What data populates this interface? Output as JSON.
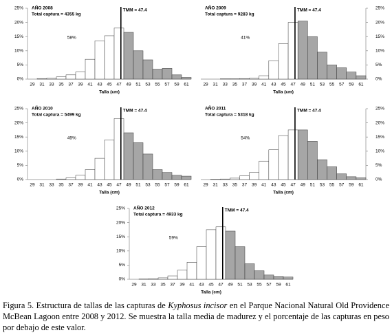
{
  "chart_data": [
    {
      "type": "bar",
      "title": "AÑO 2008",
      "subtitle": "Total captura = 4355 kg",
      "xlabel": "Talla (cm)",
      "annotation": "TMM = 47.4",
      "tmm": 47.4,
      "percent_label": "58%",
      "y_axis_side": "left",
      "grid": false,
      "colors": [
        "#ffffff",
        "#a6a6a6"
      ],
      "x": [
        29,
        31,
        33,
        35,
        37,
        39,
        41,
        43,
        45,
        47,
        49,
        51,
        53,
        55,
        57,
        59,
        61
      ],
      "values": [
        0,
        0.2,
        0.3,
        0.8,
        1.5,
        2.5,
        7,
        13.5,
        15.3,
        18,
        16.5,
        10,
        6.8,
        3.5,
        3.8,
        1.5,
        0.6
      ],
      "xlim": [
        28,
        62
      ],
      "xticks": [
        29,
        31,
        33,
        35,
        37,
        39,
        41,
        43,
        45,
        47,
        49,
        51,
        53,
        55,
        57,
        59,
        61
      ],
      "ylim": [
        0,
        25
      ],
      "yticks": [
        {
          "value": 0,
          "label": "0%"
        },
        {
          "value": 5,
          "label": "5%"
        },
        {
          "value": 10,
          "label": "10%"
        },
        {
          "value": 15,
          "label": "15%"
        },
        {
          "value": 20,
          "label": "20%"
        },
        {
          "value": 25,
          "label": "25%"
        }
      ]
    },
    {
      "type": "bar",
      "title": "AÑO 2009",
      "subtitle": "Total captura = 9283 kg",
      "xlabel": "Talla (cm)",
      "annotation": "TMM = 47.4",
      "tmm": 47.4,
      "percent_label": "41%",
      "y_axis_side": "right",
      "grid": false,
      "colors": [
        "#ffffff",
        "#a6a6a6"
      ],
      "x": [
        29,
        31,
        33,
        35,
        37,
        39,
        41,
        43,
        45,
        47,
        49,
        51,
        53,
        55,
        57,
        59,
        61
      ],
      "values": [
        0,
        0,
        0.1,
        0.1,
        0.2,
        0.3,
        1.2,
        6.5,
        12.5,
        20,
        20.5,
        15,
        9.5,
        5,
        4,
        2.5,
        1.2
      ],
      "xlim": [
        28,
        62
      ],
      "xticks": [
        29,
        31,
        33,
        35,
        37,
        39,
        41,
        43,
        45,
        47,
        49,
        51,
        53,
        55,
        57,
        59,
        61
      ],
      "ylim": [
        0,
        25
      ],
      "yticks": [
        {
          "value": 0,
          "label": "0%"
        },
        {
          "value": 5,
          "label": "5%"
        },
        {
          "value": 10,
          "label": "10%"
        },
        {
          "value": 15,
          "label": "15%"
        },
        {
          "value": 20,
          "label": "20%"
        },
        {
          "value": 25,
          "label": "25%"
        }
      ]
    },
    {
      "type": "bar",
      "title": "AÑO 2010",
      "subtitle": "Total captura = 5499 kg",
      "xlabel": "Talla (cm)",
      "annotation": "TMM = 47.4",
      "tmm": 47.4,
      "percent_label": "49%",
      "y_axis_side": "left",
      "grid": false,
      "colors": [
        "#ffffff",
        "#a6a6a6"
      ],
      "x": [
        29,
        31,
        33,
        35,
        37,
        39,
        41,
        43,
        45,
        47,
        49,
        51,
        53,
        55,
        57,
        59,
        61
      ],
      "values": [
        0,
        0,
        0,
        0.2,
        0.6,
        1.5,
        3.5,
        7.5,
        14,
        21.5,
        16.5,
        13,
        9,
        3.5,
        2.5,
        1.5,
        1.2
      ],
      "xlim": [
        28,
        62
      ],
      "xticks": [
        29,
        31,
        33,
        35,
        37,
        39,
        41,
        43,
        45,
        47,
        49,
        51,
        53,
        55,
        57,
        59,
        61
      ],
      "ylim": [
        0,
        25
      ],
      "yticks": [
        {
          "value": 0,
          "label": "0%"
        },
        {
          "value": 5,
          "label": "5%"
        },
        {
          "value": 10,
          "label": "10%"
        },
        {
          "value": 15,
          "label": "15%"
        },
        {
          "value": 20,
          "label": "20%"
        },
        {
          "value": 25,
          "label": "25%"
        }
      ]
    },
    {
      "type": "bar",
      "title": "AÑO 2011",
      "subtitle": "Total captura = 5318 kg",
      "xlabel": "Talla (cm)",
      "annotation": "TMM = 47.4",
      "tmm": 47.4,
      "percent_label": "54%",
      "y_axis_side": "right",
      "grid": false,
      "colors": [
        "#ffffff",
        "#a6a6a6"
      ],
      "x": [
        29,
        31,
        33,
        35,
        37,
        39,
        41,
        43,
        45,
        47,
        49,
        51,
        53,
        55,
        57,
        59,
        61
      ],
      "values": [
        0,
        0.1,
        0.2,
        0.5,
        1.3,
        2.5,
        6.5,
        10.5,
        15.5,
        17.5,
        17.5,
        13.5,
        7,
        4.5,
        2,
        1,
        0.6
      ],
      "xlim": [
        28,
        62
      ],
      "xticks": [
        29,
        31,
        33,
        35,
        37,
        39,
        41,
        43,
        45,
        47,
        49,
        51,
        53,
        55,
        57,
        59,
        61
      ],
      "ylim": [
        0,
        25
      ],
      "yticks": [
        {
          "value": 0,
          "label": "0%"
        },
        {
          "value": 5,
          "label": "5%"
        },
        {
          "value": 10,
          "label": "10%"
        },
        {
          "value": 15,
          "label": "15%"
        },
        {
          "value": 20,
          "label": "20%"
        },
        {
          "value": 25,
          "label": "25%"
        }
      ]
    },
    {
      "type": "bar",
      "title": "AÑO 2012",
      "subtitle": "Total captura = 4933 kg",
      "xlabel": "Talla (cm)",
      "annotation": "TMM = 47.4",
      "tmm": 47.4,
      "percent_label": "59%",
      "y_axis_side": "left",
      "grid": false,
      "colors": [
        "#ffffff",
        "#a6a6a6"
      ],
      "x": [
        29,
        31,
        33,
        35,
        37,
        39,
        41,
        43,
        45,
        47,
        49,
        51,
        53,
        55,
        57,
        59,
        61
      ],
      "values": [
        0,
        0.1,
        0.2,
        0.5,
        1.2,
        3.2,
        6,
        11.5,
        17.5,
        18.5,
        17,
        11.5,
        5.5,
        3,
        1.5,
        1,
        0.8
      ],
      "xlim": [
        28,
        62
      ],
      "xticks": [
        29,
        31,
        33,
        35,
        37,
        39,
        41,
        43,
        45,
        47,
        49,
        51,
        53,
        55,
        57,
        59,
        61
      ],
      "ylim": [
        0,
        25
      ],
      "yticks": [
        {
          "value": 0,
          "label": "0%"
        },
        {
          "value": 5,
          "label": "5%"
        },
        {
          "value": 10,
          "label": "10%"
        },
        {
          "value": 15,
          "label": "15%"
        },
        {
          "value": 20,
          "label": "20%"
        },
        {
          "value": 25,
          "label": "25%"
        }
      ]
    }
  ],
  "caption": {
    "before": "Figura 5. Estructura de tallas de las capturas de ",
    "species": "Kyphosus incisor",
    "after": " en el Parque Nacional Natural Old Providence McBean Lagoon entre 2008 y 2012. Se muestra la talla media de madurez y el porcentaje de las capturas en peso por debajo de este valor."
  }
}
